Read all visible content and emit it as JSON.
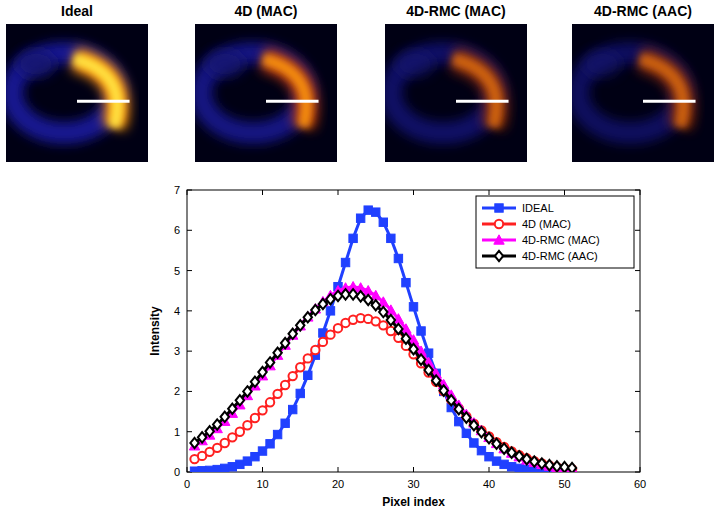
{
  "panels": [
    {
      "title": "Ideal"
    },
    {
      "title": "4D (MAC)"
    },
    {
      "title": "4D-RMC (MAC)"
    },
    {
      "title": "4D-RMC (AAC)"
    }
  ],
  "chart_data": {
    "type": "line",
    "xlabel": "Pixel index",
    "ylabel": "Intensity",
    "xlim": [
      0,
      60
    ],
    "xticks": [
      0,
      10,
      20,
      30,
      40,
      50,
      60
    ],
    "ylim": [
      0,
      7
    ],
    "yticks": [
      0,
      1,
      2,
      3,
      4,
      5,
      6,
      7
    ],
    "legend": "upper right",
    "grid": false,
    "x": [
      1,
      2,
      3,
      4,
      5,
      6,
      7,
      8,
      9,
      10,
      11,
      12,
      13,
      14,
      15,
      16,
      17,
      18,
      19,
      20,
      21,
      22,
      23,
      24,
      25,
      26,
      27,
      28,
      29,
      30,
      31,
      32,
      33,
      34,
      35,
      36,
      37,
      38,
      39,
      40,
      41,
      42,
      43,
      44,
      45,
      46,
      47,
      48,
      49,
      50,
      51
    ],
    "series": [
      {
        "name": "IDEAL",
        "color": "#2040ff",
        "marker": "square",
        "values": [
          0.02,
          0.03,
          0.04,
          0.06,
          0.09,
          0.13,
          0.19,
          0.27,
          0.38,
          0.52,
          0.7,
          0.93,
          1.21,
          1.55,
          1.95,
          2.4,
          2.9,
          3.45,
          4.0,
          4.6,
          5.2,
          5.8,
          6.3,
          6.5,
          6.45,
          6.2,
          5.8,
          5.3,
          4.7,
          4.1,
          3.5,
          2.95,
          2.45,
          2.0,
          1.6,
          1.25,
          0.96,
          0.72,
          0.53,
          0.38,
          0.27,
          0.19,
          0.13,
          0.09,
          0.06,
          0.04,
          0.03,
          0.02,
          0.01,
          0.01,
          0.0
        ]
      },
      {
        "name": "4D (MAC)",
        "color": "#ff2020",
        "marker": "circle",
        "values": [
          0.32,
          0.4,
          0.5,
          0.6,
          0.72,
          0.86,
          1.0,
          1.16,
          1.34,
          1.53,
          1.73,
          1.94,
          2.16,
          2.38,
          2.6,
          2.82,
          3.03,
          3.23,
          3.41,
          3.57,
          3.7,
          3.78,
          3.82,
          3.8,
          3.74,
          3.64,
          3.5,
          3.33,
          3.13,
          2.92,
          2.7,
          2.47,
          2.24,
          2.01,
          1.79,
          1.58,
          1.38,
          1.2,
          1.03,
          0.88,
          0.74,
          0.62,
          0.51,
          0.42,
          0.34,
          0.27,
          0.21,
          0.16,
          0.12,
          0.09,
          0.07
        ]
      },
      {
        "name": "4D-RMC (MAC)",
        "color": "#ff00ff",
        "marker": "triangle",
        "values": [
          0.65,
          0.78,
          0.92,
          1.08,
          1.26,
          1.46,
          1.67,
          1.9,
          2.14,
          2.39,
          2.64,
          2.9,
          3.15,
          3.4,
          3.63,
          3.85,
          4.05,
          4.23,
          4.38,
          4.5,
          4.57,
          4.6,
          4.57,
          4.5,
          4.38,
          4.22,
          4.02,
          3.8,
          3.55,
          3.28,
          3.0,
          2.72,
          2.44,
          2.17,
          1.91,
          1.66,
          1.43,
          1.22,
          1.03,
          0.86,
          0.71,
          0.58,
          0.47,
          0.38,
          0.3,
          0.24,
          0.19,
          0.15,
          0.12,
          0.1,
          0.08
        ]
      },
      {
        "name": "4D-RMC (AAC)",
        "color": "#000000",
        "marker": "diamond",
        "values": [
          0.72,
          0.86,
          1.01,
          1.18,
          1.37,
          1.57,
          1.78,
          2.0,
          2.24,
          2.48,
          2.72,
          2.96,
          3.2,
          3.43,
          3.64,
          3.84,
          4.02,
          4.17,
          4.29,
          4.37,
          4.41,
          4.41,
          4.36,
          4.27,
          4.14,
          3.97,
          3.77,
          3.55,
          3.31,
          3.05,
          2.79,
          2.53,
          2.27,
          2.02,
          1.78,
          1.56,
          1.35,
          1.16,
          0.99,
          0.84,
          0.7,
          0.58,
          0.48,
          0.39,
          0.32,
          0.26,
          0.21,
          0.17,
          0.14,
          0.12,
          0.1
        ]
      }
    ]
  }
}
